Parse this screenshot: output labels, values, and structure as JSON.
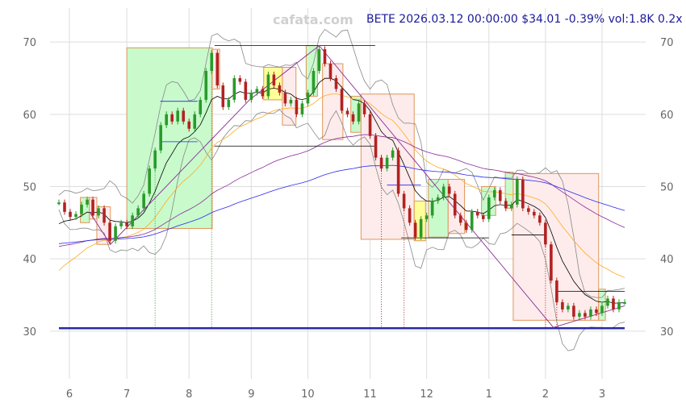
{
  "watermark": "cafata.com",
  "title": "BETE 2026.03.12 00:00:00 $34.01 -0.39% vol:1.8K 0.2x",
  "chart_data": {
    "type": "candlestick",
    "ylim": [
      23.4,
      74.7
    ],
    "yticks": [
      30,
      40,
      50,
      60,
      70
    ],
    "xticks": [
      {
        "i": 2,
        "label": "6"
      },
      {
        "i": 12,
        "label": "7"
      },
      {
        "i": 23,
        "label": "8"
      },
      {
        "i": 34,
        "label": "9"
      },
      {
        "i": 44,
        "label": "10"
      },
      {
        "i": 55,
        "label": "11"
      },
      {
        "i": 65,
        "label": "12"
      },
      {
        "i": 76,
        "label": "1"
      },
      {
        "i": 86,
        "label": "2"
      },
      {
        "i": 96,
        "label": "3"
      }
    ],
    "grid": true,
    "closes": [
      47.8,
      46.5,
      45.8,
      46.2,
      47.5,
      48.2,
      46,
      47,
      45,
      42.5,
      44.5,
      45,
      44.5,
      46,
      47,
      49,
      52.5,
      55,
      58.5,
      60,
      59,
      60.5,
      59,
      58,
      60,
      62,
      66,
      68.5,
      64,
      61,
      62,
      65,
      64.5,
      62,
      63,
      63.5,
      62.5,
      65.5,
      64,
      63,
      61.5,
      62,
      60,
      61.5,
      63,
      66,
      69,
      67,
      65,
      63.5,
      60.5,
      60,
      59,
      61.5,
      60,
      57,
      54,
      52.5,
      54,
      55,
      49,
      47,
      45,
      43,
      45.5,
      46,
      48,
      48.5,
      50,
      49,
      46,
      45,
      44,
      46.5,
      46,
      45.5,
      48.5,
      49.5,
      48,
      47,
      47.5,
      51,
      47,
      46.5,
      46,
      45,
      42,
      37,
      34,
      33,
      33.5,
      32,
      32.5,
      32,
      33,
      32.5,
      33.5,
      34.5,
      33,
      34,
      34.01
    ],
    "boxes": [
      {
        "kind": "up",
        "from": 3.8,
        "to": 5.4,
        "low": 45,
        "high": 48.5
      },
      {
        "kind": "down",
        "from": 5.4,
        "to": 6.7,
        "low": 45.5,
        "high": 48.5
      },
      {
        "kind": "down",
        "from": 6.7,
        "to": 9.1,
        "low": 42,
        "high": 47.2
      },
      {
        "kind": "up",
        "from": 12,
        "to": 27.1,
        "low": 44.2,
        "high": 69.2
      },
      {
        "kind": "down",
        "from": 27.1,
        "to": 28.4,
        "low": 63.5,
        "high": 69
      },
      {
        "kind": "flat",
        "from": 36.2,
        "to": 39.5,
        "low": 62,
        "high": 66.5
      },
      {
        "kind": "down",
        "from": 39.5,
        "to": 41.9,
        "low": 58.5,
        "high": 66.5
      },
      {
        "kind": "up",
        "from": 43.7,
        "to": 45.7,
        "low": 62.5,
        "high": 69.5
      },
      {
        "kind": "down",
        "from": 46.6,
        "to": 50.2,
        "low": 56.5,
        "high": 67
      },
      {
        "kind": "up",
        "from": 51.6,
        "to": 53.4,
        "low": 57.5,
        "high": 62.5
      },
      {
        "kind": "down",
        "from": 53.4,
        "to": 62.8,
        "low": 42.7,
        "high": 62.8
      },
      {
        "kind": "flat",
        "from": 62.8,
        "to": 64.8,
        "low": 42.5,
        "high": 48
      },
      {
        "kind": "up",
        "from": 65.3,
        "to": 68.8,
        "low": 43,
        "high": 51
      },
      {
        "kind": "down",
        "from": 68.8,
        "to": 71.7,
        "low": 43.5,
        "high": 51
      },
      {
        "kind": "up",
        "from": 74.7,
        "to": 77.2,
        "low": 46,
        "high": 50
      },
      {
        "kind": "up",
        "from": 78.9,
        "to": 80.3,
        "low": 47,
        "high": 52
      },
      {
        "kind": "down",
        "from": 80.3,
        "to": 95.4,
        "low": 31.5,
        "high": 51.8
      },
      {
        "kind": "up",
        "from": 95.4,
        "to": 96.6,
        "low": 31.5,
        "high": 35.8
      }
    ],
    "levels": [
      {
        "from": 27.5,
        "to": 55.9,
        "price": 69.5,
        "color": "#000"
      },
      {
        "from": 27.5,
        "to": 55.9,
        "price": 55.6,
        "color": "#000"
      },
      {
        "from": 17.9,
        "to": 24.5,
        "price": 61.8,
        "color": "#2222ee"
      },
      {
        "from": 17.9,
        "to": 24.5,
        "price": 56.2,
        "color": "#2222ee"
      },
      {
        "from": 60.5,
        "to": 76,
        "price": 42.9,
        "color": "#000"
      },
      {
        "from": 58,
        "to": 64,
        "price": 50.2,
        "color": "#2222ee"
      },
      {
        "from": 80,
        "to": 86,
        "price": 43.3,
        "color": "#000"
      },
      {
        "from": 88,
        "to": 100,
        "price": 35.5,
        "color": "#000"
      }
    ],
    "zigzag": [
      [
        5.4,
        46.5
      ],
      [
        9.1,
        42
      ],
      [
        33.7,
        62
      ],
      [
        46,
        69.5
      ],
      [
        87.4,
        30.5
      ],
      [
        100,
        33.5
      ]
    ],
    "signals": [
      17,
      27,
      57,
      61,
      86,
      88
    ],
    "volume_baseline": 30.4,
    "colors": {
      "up": "#2a9a2a",
      "down": "#b22222",
      "sma20": "#000000",
      "sma50": "#ffaa22",
      "long1": "#8a2a9a",
      "long2": "#2a2aee",
      "band": "#888888",
      "upbox": "#c8facc",
      "downbox": "#fdeceb",
      "flatbox": "#ffff99"
    }
  }
}
